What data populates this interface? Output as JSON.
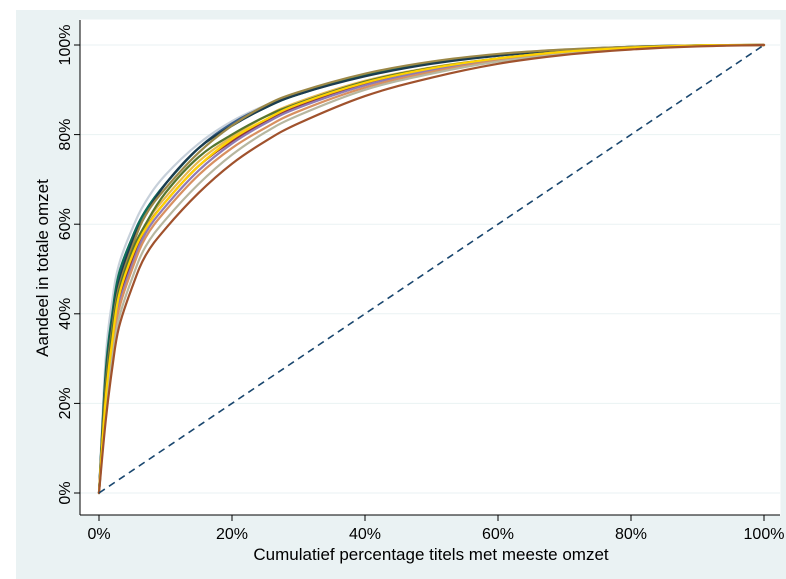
{
  "chart_data": {
    "type": "line",
    "title": "",
    "xlabel": "Cumulatief percentage titels met meeste omzet",
    "ylabel": "Aandeel in totale omzet",
    "xlim": [
      0,
      100
    ],
    "ylim": [
      0,
      100
    ],
    "x_ticks": [
      "0%",
      "20%",
      "40%",
      "60%",
      "80%",
      "100%"
    ],
    "y_ticks": [
      "0%",
      "20%",
      "40%",
      "60%",
      "80%",
      "100%"
    ],
    "grid": true,
    "legend": "none",
    "colors": {
      "outer_background": "#eaf2f3",
      "plot_background": "#ffffff",
      "grid": "#eaf2f3",
      "diagonal": "#1a476f"
    },
    "x": [
      0,
      1,
      2,
      3,
      5,
      7,
      10,
      15,
      20,
      25,
      30,
      40,
      50,
      60,
      70,
      80,
      90,
      100
    ],
    "series": [
      {
        "color": "#c7d0da",
        "values": [
          0,
          30,
          43,
          51,
          59,
          65,
          71,
          78,
          83,
          86.5,
          89.3,
          93.4,
          96.1,
          97.9,
          99.0,
          99.6,
          99.9,
          100
        ]
      },
      {
        "color": "#3a5e8c",
        "values": [
          0,
          26,
          39,
          48,
          57,
          63,
          69,
          77,
          82.5,
          86.3,
          89.2,
          93.3,
          96.0,
          97.8,
          98.9,
          99.6,
          99.9,
          100
        ]
      },
      {
        "color": "#0f6f59",
        "values": [
          0,
          27,
          40,
          49,
          57,
          63,
          69,
          77,
          82.0,
          86.0,
          89.0,
          93.2,
          96.0,
          97.8,
          98.9,
          99.6,
          99.9,
          100
        ]
      },
      {
        "color": "#1b3b4f",
        "values": [
          0,
          25,
          38,
          47,
          56,
          62,
          69,
          77,
          82.0,
          86.0,
          89.0,
          93.0,
          95.8,
          97.6,
          98.8,
          99.5,
          99.9,
          100
        ]
      },
      {
        "color": "#9c8847",
        "values": [
          0,
          24,
          37,
          46,
          55,
          62,
          68,
          76,
          82.0,
          86.5,
          89.5,
          93.6,
          96.3,
          98.0,
          99.0,
          99.6,
          99.9,
          100
        ]
      },
      {
        "color": "#e6b94a",
        "values": [
          0,
          22,
          35,
          44,
          53,
          60,
          66,
          74,
          79.5,
          84.0,
          87.3,
          92.0,
          95.0,
          97.0,
          98.5,
          99.4,
          99.9,
          100
        ]
      },
      {
        "color": "#55752f",
        "values": [
          0,
          23,
          36,
          45,
          54,
          60,
          67,
          75,
          80.0,
          84.0,
          87.0,
          91.8,
          94.9,
          97.0,
          98.5,
          99.4,
          99.9,
          100
        ]
      },
      {
        "color": "#90353b",
        "values": [
          0,
          21,
          34,
          43,
          52,
          59,
          65,
          73,
          78.5,
          82.8,
          86.3,
          91.3,
          94.6,
          96.9,
          98.4,
          99.3,
          99.8,
          100
        ]
      },
      {
        "color": "#8e7bb5",
        "values": [
          0,
          20,
          33,
          42,
          51,
          58,
          64,
          72,
          78.0,
          82.5,
          86.0,
          91.0,
          94.4,
          96.7,
          98.3,
          99.3,
          99.8,
          100
        ]
      },
      {
        "color": "#d89060",
        "values": [
          0,
          19,
          32,
          41,
          50,
          57,
          63,
          71,
          77.0,
          81.5,
          85.2,
          90.5,
          94.0,
          96.5,
          98.2,
          99.2,
          99.8,
          100
        ]
      },
      {
        "color": "#b7b7a0",
        "values": [
          0,
          18,
          30,
          39,
          48,
          55,
          61,
          69,
          75.5,
          80.5,
          84.3,
          90.0,
          93.6,
          96.3,
          98.0,
          99.1,
          99.8,
          100
        ]
      },
      {
        "color": "#ffd200",
        "values": [
          0,
          21,
          34,
          44,
          53,
          59,
          65,
          73,
          79.0,
          83.3,
          86.8,
          91.6,
          94.8,
          97.0,
          98.5,
          99.4,
          99.9,
          100
        ]
      },
      {
        "color": "#a0522d",
        "values": [
          0,
          16,
          28,
          37,
          46,
          53,
          59,
          67,
          73.5,
          78.5,
          82.5,
          88.6,
          92.7,
          95.8,
          97.8,
          99.0,
          99.7,
          100
        ]
      }
    ],
    "diagonal": {
      "style": "dashed",
      "x": [
        0,
        100
      ],
      "y": [
        0,
        100
      ]
    }
  }
}
